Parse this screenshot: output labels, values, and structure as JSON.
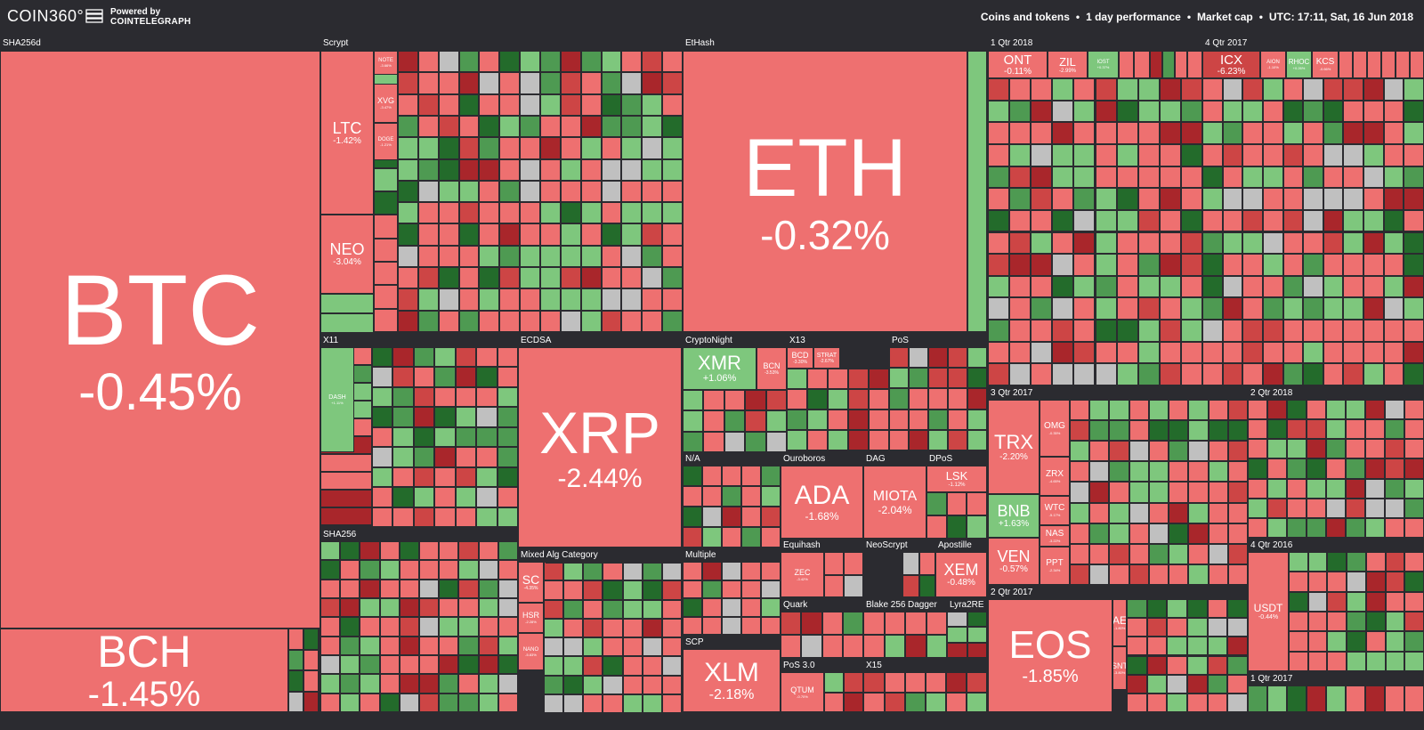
{
  "header": {
    "logo": "COIN360°",
    "logo_icon": "cointelegraph-icon",
    "powered_by": "Powered by",
    "powered_brand": "COINTELEGRAPH",
    "nav": [
      "Coins and tokens",
      "1 day performance",
      "Market cap"
    ],
    "timestamp": "UTC: 17:11, Sat, 16 Jun 2018"
  },
  "colors": {
    "red": "#ee7070",
    "red_mid": "#cd4545",
    "red_dark": "#a9262b",
    "green": "#7ec77d",
    "green_mid": "#4e9a52",
    "green_dark": "#236b2b",
    "gray": "#c0c0c0",
    "background": "#2b2b30"
  },
  "groups": [
    "SHA256d",
    "Scrypt",
    "EtHash",
    "1 Qtr 2018",
    "4 Qtr 2017",
    "X11",
    "ECDSA",
    "CryptoNight",
    "X13",
    "PoS",
    "3 Qtr 2017",
    "2 Qtr 2018",
    "N/A",
    "Ouroboros",
    "DAG",
    "DPoS",
    "SHA256",
    "Mixed Alg Category",
    "Multiple",
    "Equihash",
    "NeoScrypt",
    "Apostille",
    "4 Qtr 2016",
    "2 Qtr 2017",
    "Quark",
    "Blake 256",
    "Dagger",
    "Lyra2RE",
    "SCP",
    "PoS 3.0",
    "X15",
    "1 Qtr 2017"
  ],
  "coins": [
    {
      "symbol": "BTC",
      "change": "-0.45%",
      "color": "red"
    },
    {
      "symbol": "BCH",
      "change": "-1.45%",
      "color": "red"
    },
    {
      "symbol": "ETH",
      "change": "-0.32%",
      "color": "red"
    },
    {
      "symbol": "LTC",
      "change": "-1.42%",
      "color": "red"
    },
    {
      "symbol": "NEO",
      "change": "-3.04%",
      "color": "red"
    },
    {
      "symbol": "NOTE",
      "change": "-3.66%",
      "color": "red"
    },
    {
      "symbol": "XVG",
      "change": "-3.47%",
      "color": "red"
    },
    {
      "symbol": "DOGE",
      "change": "-1.21%",
      "color": "red"
    },
    {
      "symbol": "XRP",
      "change": "-2.44%",
      "color": "red"
    },
    {
      "symbol": "DASH",
      "change": "+1.11%",
      "color": "green"
    },
    {
      "symbol": "XMR",
      "change": "+1.06%",
      "color": "green"
    },
    {
      "symbol": "BCN",
      "change": "-3.53%",
      "color": "red"
    },
    {
      "symbol": "BCD",
      "change": "-3.30%",
      "color": "red"
    },
    {
      "symbol": "STRAT",
      "change": "-2.67%",
      "color": "red"
    },
    {
      "symbol": "ONT",
      "change": "-0.11%",
      "color": "red"
    },
    {
      "symbol": "ZIL",
      "change": "-2.99%",
      "color": "red"
    },
    {
      "symbol": "IOST",
      "change": "+0.37%",
      "color": "green"
    },
    {
      "symbol": "ICX",
      "change": "-6.23%",
      "color": "red_mid"
    },
    {
      "symbol": "AION",
      "change": "-1.10%",
      "color": "red"
    },
    {
      "symbol": "RHOC",
      "change": "+0.26%",
      "color": "green"
    },
    {
      "symbol": "KCS",
      "change": "-0.66%",
      "color": "red"
    },
    {
      "symbol": "ADA",
      "change": "-1.68%",
      "color": "red"
    },
    {
      "symbol": "MIOTA",
      "change": "-2.04%",
      "color": "red"
    },
    {
      "symbol": "LSK",
      "change": "-1.12%",
      "color": "red"
    },
    {
      "symbol": "TRX",
      "change": "-2.20%",
      "color": "red"
    },
    {
      "symbol": "OMG",
      "change": "-0.35%",
      "color": "red"
    },
    {
      "symbol": "ZRX",
      "change": "-4.65%",
      "color": "red"
    },
    {
      "symbol": "WTC",
      "change": "-5.17%",
      "color": "red"
    },
    {
      "symbol": "NAS",
      "change": "-3.22%",
      "color": "red"
    },
    {
      "symbol": "PPT",
      "change": "-2.34%",
      "color": "red"
    },
    {
      "symbol": "BNB",
      "change": "+1.63%",
      "color": "green"
    },
    {
      "symbol": "VEN",
      "change": "-0.57%",
      "color": "red"
    },
    {
      "symbol": "SC",
      "change": "-4.35%",
      "color": "red"
    },
    {
      "symbol": "HSR",
      "change": "-2.28%",
      "color": "red"
    },
    {
      "symbol": "NANO",
      "change": "-5.83%",
      "color": "red"
    },
    {
      "symbol": "ZEC",
      "change": "-3.42%",
      "color": "red"
    },
    {
      "symbol": "XEM",
      "change": "-0.48%",
      "color": "red"
    },
    {
      "symbol": "USDT",
      "change": "-0.44%",
      "color": "red"
    },
    {
      "symbol": "EOS",
      "change": "-1.85%",
      "color": "red"
    },
    {
      "symbol": "AE",
      "change": "-1.80%",
      "color": "red"
    },
    {
      "symbol": "SNT",
      "change": "-3.80%",
      "color": "red"
    },
    {
      "symbol": "XLM",
      "change": "-2.18%",
      "color": "red"
    },
    {
      "symbol": "QTUM",
      "change": "-0.70%",
      "color": "red"
    }
  ]
}
